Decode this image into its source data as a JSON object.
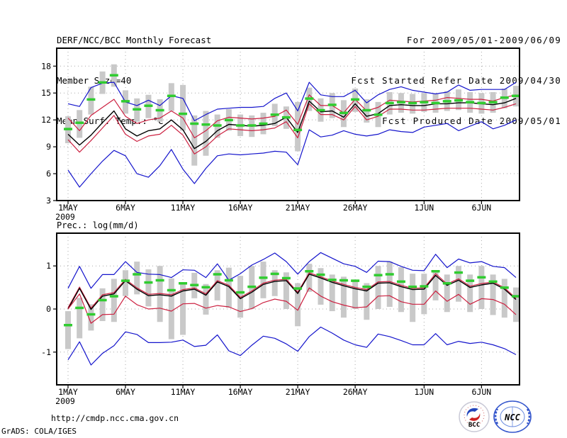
{
  "header": {
    "title": "DERF/NCC/BCC Monthly Forecast",
    "member_size": "Member Size=40",
    "temp_label": "Mean Surf. Temp.: °C",
    "for_range": "For 2009/05/01-2009/06/09",
    "fcst_started": "Fcst Started Refer Date 2009/04/30",
    "fcst_produced": "Fcst Produced Date 2009/05/01"
  },
  "footer": {
    "url": "http://cmdp.ncc.cma.gov.cn",
    "grads_credit": "GrADS: COLA/IGES"
  },
  "logos": {
    "bcc": "BCC",
    "ncc": "NCC"
  },
  "colors": {
    "envelope": "#1414cc",
    "quartile": "#cc2040",
    "median": "#000000",
    "obs_dash": "#30cc30",
    "spread_bar": "#c9c9c9",
    "grid": "#a8a8a8"
  },
  "chart_data": [
    {
      "type": "line",
      "title": "Mean Surf. Temp.: °C",
      "ylabel": "",
      "ylim": [
        3,
        20
      ],
      "yticks": [
        3,
        6,
        9,
        12,
        15,
        18
      ],
      "x_ticklabels": [
        "1MAY",
        "6MAY",
        "11MAY",
        "16MAY",
        "21MAY",
        "26MAY",
        "1JUN",
        "6JUN"
      ],
      "tick_indices": [
        0,
        5,
        10,
        15,
        20,
        25,
        31,
        36
      ],
      "year_sublabel": "2009",
      "grid": "dotted",
      "legend": "none",
      "series": [
        {
          "name": "ensemble-max",
          "color": "#1414cc",
          "values": [
            13.8,
            13.5,
            15.6,
            16.1,
            16.2,
            14.0,
            13.6,
            14.2,
            13.6,
            14.7,
            14.4,
            11.9,
            12.6,
            13.2,
            13.3,
            13.4,
            13.4,
            13.5,
            14.4,
            15.0,
            13.0,
            16.2,
            14.8,
            14.6,
            14.6,
            15.3,
            13.9,
            14.8,
            15.4,
            15.7,
            15.3,
            15.1,
            14.9,
            15.1,
            15.9,
            15.3,
            15.4,
            15.4,
            15.4,
            16.2
          ]
        },
        {
          "name": "upper-quartile",
          "color": "#cc2040",
          "values": [
            12.2,
            10.8,
            12.5,
            13.4,
            14.3,
            12.4,
            11.6,
            12.0,
            12.2,
            13.0,
            12.2,
            10.0,
            10.8,
            11.9,
            12.3,
            12.2,
            12.1,
            12.2,
            12.4,
            13.1,
            11.5,
            14.8,
            13.6,
            13.6,
            12.8,
            14.3,
            13.0,
            13.4,
            14.2,
            14.1,
            14.0,
            14.1,
            14.2,
            14.5,
            14.4,
            14.3,
            14.3,
            14.1,
            14.5,
            14.8
          ]
        },
        {
          "name": "median",
          "color": "#000000",
          "values": [
            10.4,
            9.2,
            10.3,
            11.7,
            13.0,
            11.0,
            10.2,
            10.8,
            11.0,
            12.0,
            10.9,
            8.8,
            9.6,
            10.8,
            11.5,
            11.4,
            11.3,
            11.4,
            11.6,
            12.3,
            10.6,
            14.1,
            12.9,
            13.0,
            12.3,
            13.8,
            12.4,
            12.7,
            13.6,
            13.7,
            13.6,
            13.6,
            13.8,
            13.8,
            13.9,
            13.9,
            13.8,
            13.7,
            13.9,
            14.4
          ]
        },
        {
          "name": "lower-quartile",
          "color": "#cc2040",
          "values": [
            9.8,
            8.4,
            9.7,
            11.1,
            12.5,
            10.4,
            9.6,
            10.2,
            10.4,
            11.4,
            10.3,
            8.2,
            9.0,
            10.2,
            11.0,
            10.9,
            10.8,
            10.9,
            11.1,
            11.8,
            10.0,
            13.8,
            12.6,
            12.6,
            12.0,
            13.5,
            12.0,
            12.4,
            13.2,
            13.2,
            13.1,
            13.1,
            13.2,
            13.3,
            13.3,
            13.3,
            13.2,
            13.1,
            13.4,
            13.8
          ]
        },
        {
          "name": "ensemble-min",
          "color": "#1414cc",
          "values": [
            6.4,
            4.5,
            6.0,
            7.4,
            8.6,
            8.0,
            6.0,
            5.6,
            6.9,
            8.7,
            6.5,
            4.9,
            6.6,
            8.0,
            8.2,
            8.1,
            8.2,
            8.3,
            8.5,
            8.4,
            7.0,
            10.9,
            10.1,
            10.3,
            10.8,
            10.4,
            10.2,
            10.4,
            10.9,
            10.7,
            10.6,
            11.2,
            11.4,
            11.6,
            10.8,
            11.3,
            11.8,
            11.0,
            11.4,
            12.0
          ]
        }
      ],
      "obs_dashes": [
        11.0,
        11.7,
        14.3,
        16.2,
        17.0,
        14.1,
        13.2,
        13.6,
        13.1,
        14.7,
        12.7,
        11.6,
        11.5,
        11.4,
        12.0,
        11.4,
        11.4,
        11.6,
        12.6,
        12.3,
        10.9,
        14.4,
        13.1,
        13.7,
        12.8,
        14.3,
        13.1,
        12.6,
        13.9,
        14.0,
        13.9,
        14.0,
        13.9,
        14.1,
        14.2,
        14.0,
        13.9,
        14.0,
        14.5,
        14.7
      ],
      "spread_hi": [
        12.4,
        13.1,
        15.7,
        17.4,
        18.2,
        15.3,
        14.4,
        14.8,
        14.3,
        16.1,
        15.9,
        12.5,
        13.0,
        12.6,
        13.2,
        12.6,
        12.5,
        12.8,
        13.8,
        13.5,
        14.0,
        15.6,
        14.4,
        15.0,
        14.2,
        15.5,
        14.3,
        14.0,
        15.1,
        15.0,
        14.9,
        15.0,
        14.9,
        15.2,
        15.4,
        15.1,
        15.0,
        15.1,
        15.5,
        15.8
      ],
      "spread_lo": [
        9.4,
        10.0,
        12.6,
        14.9,
        15.7,
        12.7,
        11.8,
        12.2,
        11.8,
        13.0,
        10.8,
        6.9,
        8.0,
        10.0,
        10.8,
        10.2,
        10.1,
        10.4,
        11.3,
        11.0,
        8.5,
        13.0,
        11.8,
        12.2,
        11.2,
        12.9,
        11.7,
        11.2,
        12.6,
        12.8,
        12.7,
        12.9,
        12.8,
        13.0,
        13.1,
        12.8,
        12.7,
        12.8,
        13.3,
        13.5
      ]
    },
    {
      "type": "line",
      "title": "Prec.: log(mm/d)",
      "ylabel": "",
      "ylim": [
        -1.76,
        1.76
      ],
      "yticks": [
        -1,
        0,
        1
      ],
      "x_ticklabels": [
        "1MAY",
        "6MAY",
        "11MAY",
        "16MAY",
        "21MAY",
        "26MAY",
        "1JUN",
        "6JUN"
      ],
      "tick_indices": [
        0,
        5,
        10,
        15,
        20,
        25,
        31,
        36
      ],
      "year_sublabel": "2009",
      "grid": "dotted",
      "legend": "none",
      "series": [
        {
          "name": "ensemble-max",
          "color": "#1414cc",
          "values": [
            0.48,
            0.99,
            0.48,
            0.8,
            0.8,
            1.1,
            0.85,
            0.81,
            0.8,
            0.73,
            0.91,
            0.9,
            0.73,
            1.05,
            0.67,
            0.82,
            1.02,
            1.15,
            1.3,
            1.1,
            0.81,
            1.1,
            1.31,
            1.18,
            1.05,
            0.99,
            0.85,
            1.11,
            1.1,
            0.99,
            0.9,
            0.89,
            1.27,
            0.96,
            1.16,
            1.07,
            1.1,
            0.99,
            0.96,
            0.73
          ]
        },
        {
          "name": "upper-quartile",
          "color": "#cc2040",
          "values": [
            0.03,
            0.51,
            0.02,
            0.33,
            0.38,
            0.69,
            0.49,
            0.34,
            0.36,
            0.33,
            0.45,
            0.49,
            0.35,
            0.66,
            0.55,
            0.27,
            0.42,
            0.6,
            0.67,
            0.69,
            0.39,
            0.84,
            0.75,
            0.65,
            0.57,
            0.5,
            0.45,
            0.63,
            0.64,
            0.55,
            0.48,
            0.49,
            0.82,
            0.58,
            0.7,
            0.53,
            0.59,
            0.63,
            0.49,
            0.25
          ]
        },
        {
          "name": "median",
          "color": "#000000",
          "values": [
            0.0,
            0.48,
            -0.01,
            0.3,
            0.35,
            0.66,
            0.46,
            0.31,
            0.33,
            0.3,
            0.42,
            0.46,
            0.32,
            0.63,
            0.52,
            0.24,
            0.39,
            0.57,
            0.64,
            0.66,
            0.36,
            0.81,
            0.72,
            0.62,
            0.54,
            0.47,
            0.42,
            0.6,
            0.61,
            0.52,
            0.45,
            0.46,
            0.78,
            0.55,
            0.67,
            0.5,
            0.56,
            0.6,
            0.46,
            0.22
          ]
        },
        {
          "name": "lower-quartile",
          "color": "#cc2040",
          "values": [
            0.0,
            0.35,
            -0.33,
            -0.13,
            -0.12,
            0.3,
            0.1,
            0.0,
            0.02,
            -0.05,
            0.12,
            0.13,
            0.02,
            0.08,
            0.05,
            -0.06,
            0.01,
            0.15,
            0.23,
            0.18,
            -0.03,
            0.49,
            0.3,
            0.17,
            0.09,
            0.03,
            0.05,
            0.3,
            0.31,
            0.17,
            0.11,
            0.11,
            0.42,
            0.18,
            0.34,
            0.11,
            0.24,
            0.22,
            0.11,
            -0.13
          ]
        },
        {
          "name": "ensemble-min",
          "color": "#1414cc",
          "values": [
            -1.18,
            -0.76,
            -1.3,
            -1.03,
            -0.85,
            -0.53,
            -0.59,
            -0.78,
            -0.78,
            -0.77,
            -0.72,
            -0.87,
            -0.84,
            -0.6,
            -0.97,
            -1.08,
            -0.84,
            -0.63,
            -0.68,
            -0.81,
            -0.98,
            -0.64,
            -0.42,
            -0.56,
            -0.72,
            -0.83,
            -0.89,
            -0.58,
            -0.64,
            -0.73,
            -0.83,
            -0.83,
            -0.57,
            -0.83,
            -0.75,
            -0.8,
            -0.77,
            -0.83,
            -0.92,
            -1.06
          ]
        }
      ],
      "obs_dashes": [
        -0.37,
        0.03,
        -0.12,
        0.21,
        0.3,
        0.66,
        0.81,
        0.62,
        0.67,
        0.44,
        0.6,
        0.56,
        0.51,
        0.81,
        0.67,
        0.39,
        0.52,
        0.73,
        0.82,
        0.72,
        0.48,
        0.88,
        0.8,
        0.68,
        0.67,
        0.66,
        0.52,
        0.79,
        0.81,
        0.64,
        0.52,
        0.53,
        0.88,
        0.6,
        0.85,
        0.66,
        0.74,
        0.64,
        0.5,
        0.3
      ],
      "spread_hi": [
        -0.05,
        0.26,
        0.11,
        0.48,
        0.7,
        0.9,
        1.1,
        0.92,
        1.0,
        0.71,
        0.58,
        0.84,
        0.58,
        0.9,
        0.96,
        0.77,
        1.0,
        1.1,
        0.9,
        0.85,
        0.6,
        1.05,
        0.95,
        0.8,
        0.75,
        0.65,
        0.6,
        1.0,
        1.1,
        0.97,
        0.82,
        0.82,
        0.9,
        0.8,
        1.0,
        0.8,
        1.0,
        0.8,
        0.7,
        0.5
      ],
      "spread_lo": [
        -0.93,
        -0.68,
        -0.5,
        -0.28,
        -0.3,
        0.3,
        0.34,
        0.06,
        -0.3,
        -0.7,
        -0.6,
        0.25,
        -0.13,
        0.2,
        0.03,
        -0.2,
        0.0,
        0.25,
        0.3,
        0.0,
        -0.4,
        0.4,
        0.1,
        -0.05,
        -0.2,
        0.0,
        -0.25,
        0.0,
        0.05,
        -0.07,
        -0.3,
        -0.12,
        0.2,
        -0.07,
        0.17,
        -0.07,
        0.0,
        -0.14,
        -0.2,
        -0.3
      ]
    }
  ]
}
